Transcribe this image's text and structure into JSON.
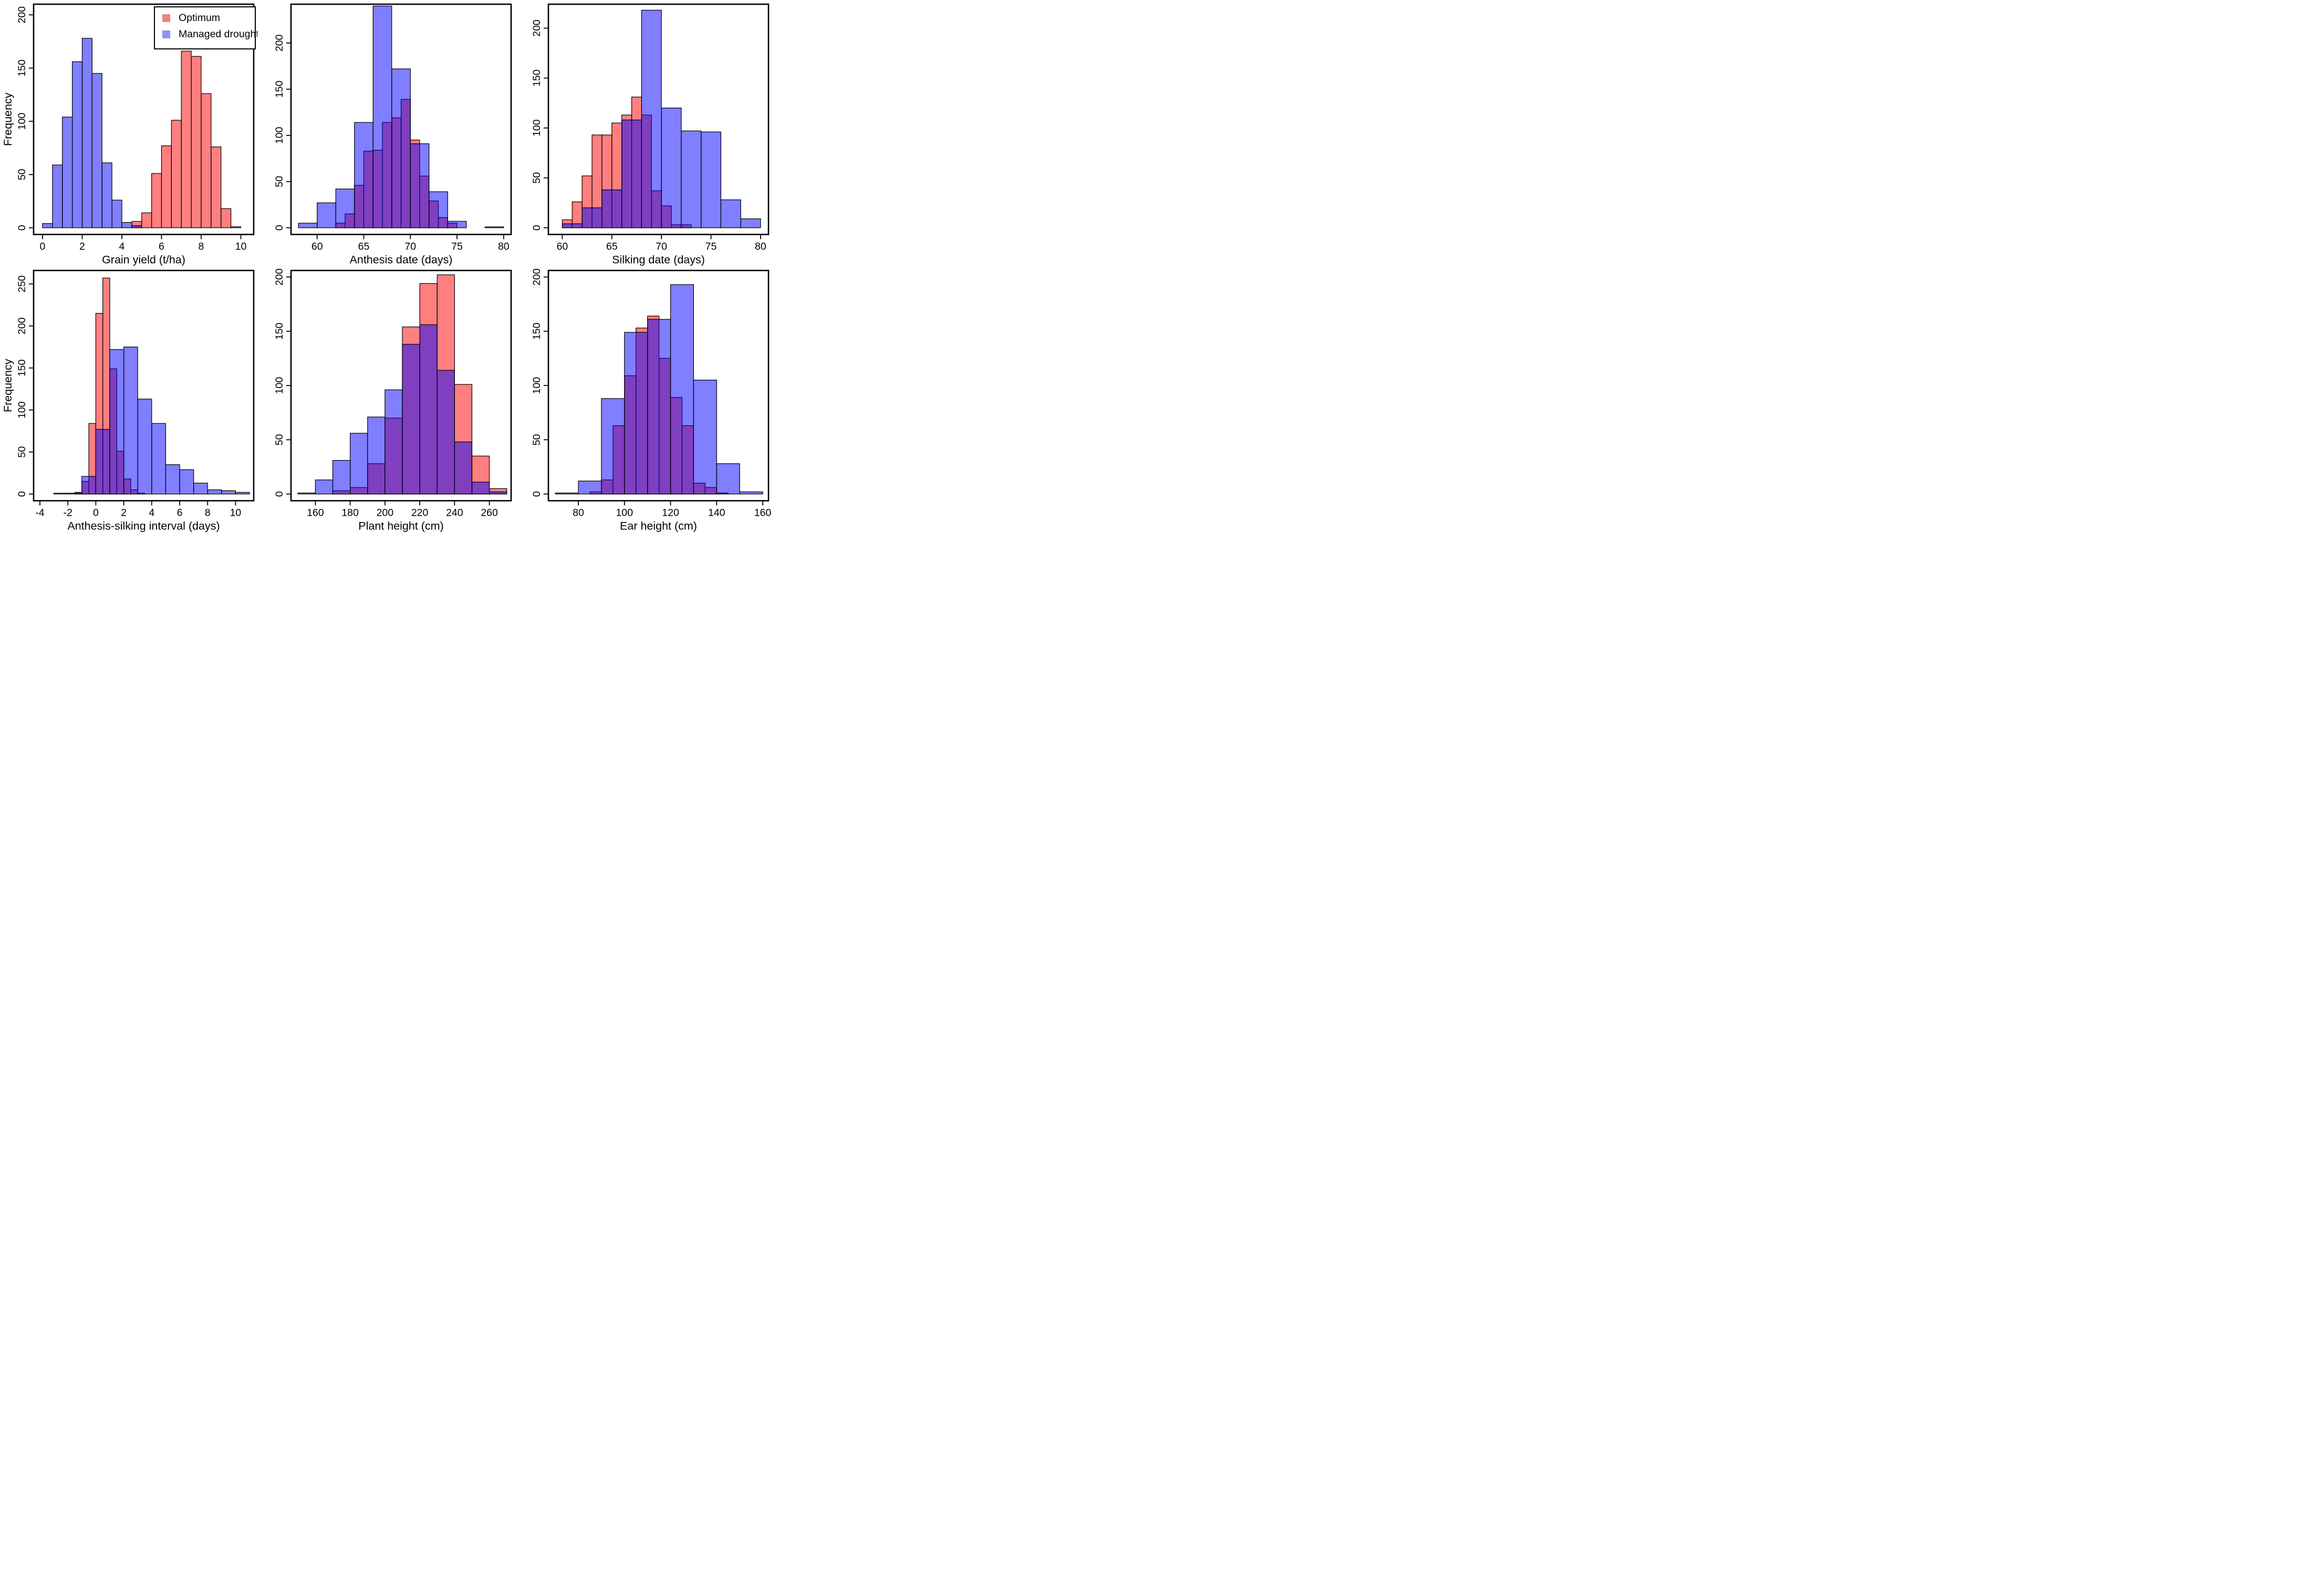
{
  "figure": {
    "background": "#ffffff",
    "colors": {
      "optimum_fill": "rgba(255,0,0,0.5)",
      "drought_fill": "rgba(0,0,255,0.5)",
      "optimum_swatch": "#f8817b",
      "drought_swatch": "#9192f8",
      "bar_stroke": "#000000",
      "axis_color": "#000000"
    },
    "legend": {
      "items": [
        {
          "label": "Optimum",
          "role": "optimum"
        },
        {
          "label": "Managed drought",
          "role": "drought"
        }
      ]
    }
  },
  "chart_data": [
    {
      "type": "histogram",
      "id": "grain-yield",
      "title": "",
      "xlabel": "Grain yield (t/ha)",
      "ylabel": "Frequency",
      "xlim": [
        -0.45,
        10.65
      ],
      "ylim": [
        0,
        210
      ],
      "xticks": [
        0,
        2,
        4,
        6,
        8,
        10
      ],
      "yticks": [
        0,
        50,
        100,
        150,
        200
      ],
      "legend": true,
      "series": [
        {
          "name": "Optimum",
          "role": "optimum",
          "bin_start": 4.5,
          "bin_width": 0.5,
          "counts": [
            6,
            14,
            51,
            77,
            101,
            166,
            161,
            126,
            76,
            18,
            1
          ]
        },
        {
          "name": "Managed drought",
          "role": "drought",
          "bin_start": 0,
          "bin_width": 0.5,
          "counts": [
            4,
            59,
            104,
            156,
            178,
            145,
            61,
            26,
            5,
            2
          ]
        }
      ]
    },
    {
      "type": "histogram",
      "id": "anthesis-date",
      "title": "",
      "xlabel": "Anthesis date (days)",
      "ylabel": "",
      "xlim": [
        57.2,
        80.8
      ],
      "ylim": [
        0,
        242
      ],
      "xticks": [
        60,
        65,
        70,
        75,
        80
      ],
      "yticks": [
        0,
        50,
        100,
        150,
        200
      ],
      "legend": false,
      "series": [
        {
          "name": "Optimum",
          "role": "optimum",
          "bin_start": 62,
          "bin_width": 1,
          "counts": [
            5,
            15,
            46,
            83,
            84,
            114,
            119,
            139,
            95,
            56,
            29,
            11,
            5
          ]
        },
        {
          "name": "Managed drought",
          "role": "drought",
          "bin_start": 58,
          "bin_width": 2,
          "counts": [
            5,
            27,
            42,
            114,
            240,
            172,
            91,
            39,
            7,
            0,
            1
          ]
        }
      ]
    },
    {
      "type": "histogram",
      "id": "silking-date",
      "title": "",
      "xlabel": "Silking date (days)",
      "ylabel": "",
      "xlim": [
        58.6,
        80.8
      ],
      "ylim": [
        0,
        224
      ],
      "xticks": [
        60,
        65,
        70,
        75,
        80
      ],
      "yticks": [
        0,
        50,
        100,
        150,
        200
      ],
      "legend": false,
      "series": [
        {
          "name": "Optimum",
          "role": "optimum",
          "bin_start": 60,
          "bin_width": 1,
          "counts": [
            8,
            26,
            52,
            93,
            93,
            105,
            113,
            131,
            113,
            37,
            22,
            3,
            3
          ]
        },
        {
          "name": "Managed drought",
          "role": "drought",
          "bin_start": 60,
          "bin_width": 2,
          "counts": [
            4,
            20,
            38,
            108,
            218,
            120,
            97,
            96,
            28,
            9
          ]
        }
      ]
    },
    {
      "type": "histogram",
      "id": "anthesis-silking-interval",
      "title": "",
      "xlabel": "Anthesis-silking interval (days)",
      "ylabel": "Frequency",
      "xlim": [
        -4.45,
        11.3
      ],
      "ylim": [
        0,
        266
      ],
      "xticks": [
        -4,
        -2,
        0,
        2,
        4,
        6,
        8,
        10
      ],
      "yticks": [
        0,
        50,
        100,
        150,
        200,
        250
      ],
      "legend": false,
      "series": [
        {
          "name": "Optimum",
          "role": "optimum",
          "bin_start": -1.5,
          "bin_width": 0.5,
          "counts": [
            2,
            15,
            84,
            215,
            257,
            149,
            51,
            18,
            5,
            1
          ]
        },
        {
          "name": "Managed drought",
          "role": "drought",
          "bin_start": -3,
          "bin_width": 1,
          "counts": [
            1,
            1,
            21,
            77,
            172,
            175,
            113,
            84,
            35,
            29,
            13,
            5,
            4,
            2
          ]
        }
      ]
    },
    {
      "type": "histogram",
      "id": "plant-height",
      "title": "",
      "xlabel": "Plant height (cm)",
      "ylabel": "",
      "xlim": [
        146,
        272.5
      ],
      "ylim": [
        0,
        206
      ],
      "xticks": [
        160,
        180,
        200,
        220,
        240,
        260
      ],
      "yticks": [
        0,
        50,
        100,
        150,
        200
      ],
      "legend": false,
      "series": [
        {
          "name": "Optimum",
          "role": "optimum",
          "bin_start": 170,
          "bin_width": 10,
          "counts": [
            3,
            6,
            28,
            70,
            154,
            194,
            202,
            101,
            35,
            5
          ]
        },
        {
          "name": "Managed drought",
          "role": "drought",
          "bin_start": 150,
          "bin_width": 10,
          "counts": [
            1,
            13,
            31,
            56,
            71,
            96,
            138,
            156,
            114,
            48,
            11,
            2
          ]
        }
      ]
    },
    {
      "type": "histogram",
      "id": "ear-height",
      "title": "",
      "xlabel": "Ear height (cm)",
      "ylabel": "",
      "xlim": [
        67,
        162.5
      ],
      "ylim": [
        0,
        206
      ],
      "xticks": [
        80,
        100,
        120,
        140,
        160
      ],
      "yticks": [
        0,
        50,
        100,
        150,
        200
      ],
      "legend": false,
      "series": [
        {
          "name": "Optimum",
          "role": "optimum",
          "bin_start": 85,
          "bin_width": 5,
          "counts": [
            2,
            13,
            63,
            109,
            153,
            164,
            125,
            89,
            63,
            10,
            6,
            1
          ]
        },
        {
          "name": "Managed drought",
          "role": "drought",
          "bin_start": 70,
          "bin_width": 10,
          "counts": [
            1,
            12,
            88,
            149,
            161,
            193,
            105,
            28,
            2
          ]
        }
      ]
    }
  ]
}
